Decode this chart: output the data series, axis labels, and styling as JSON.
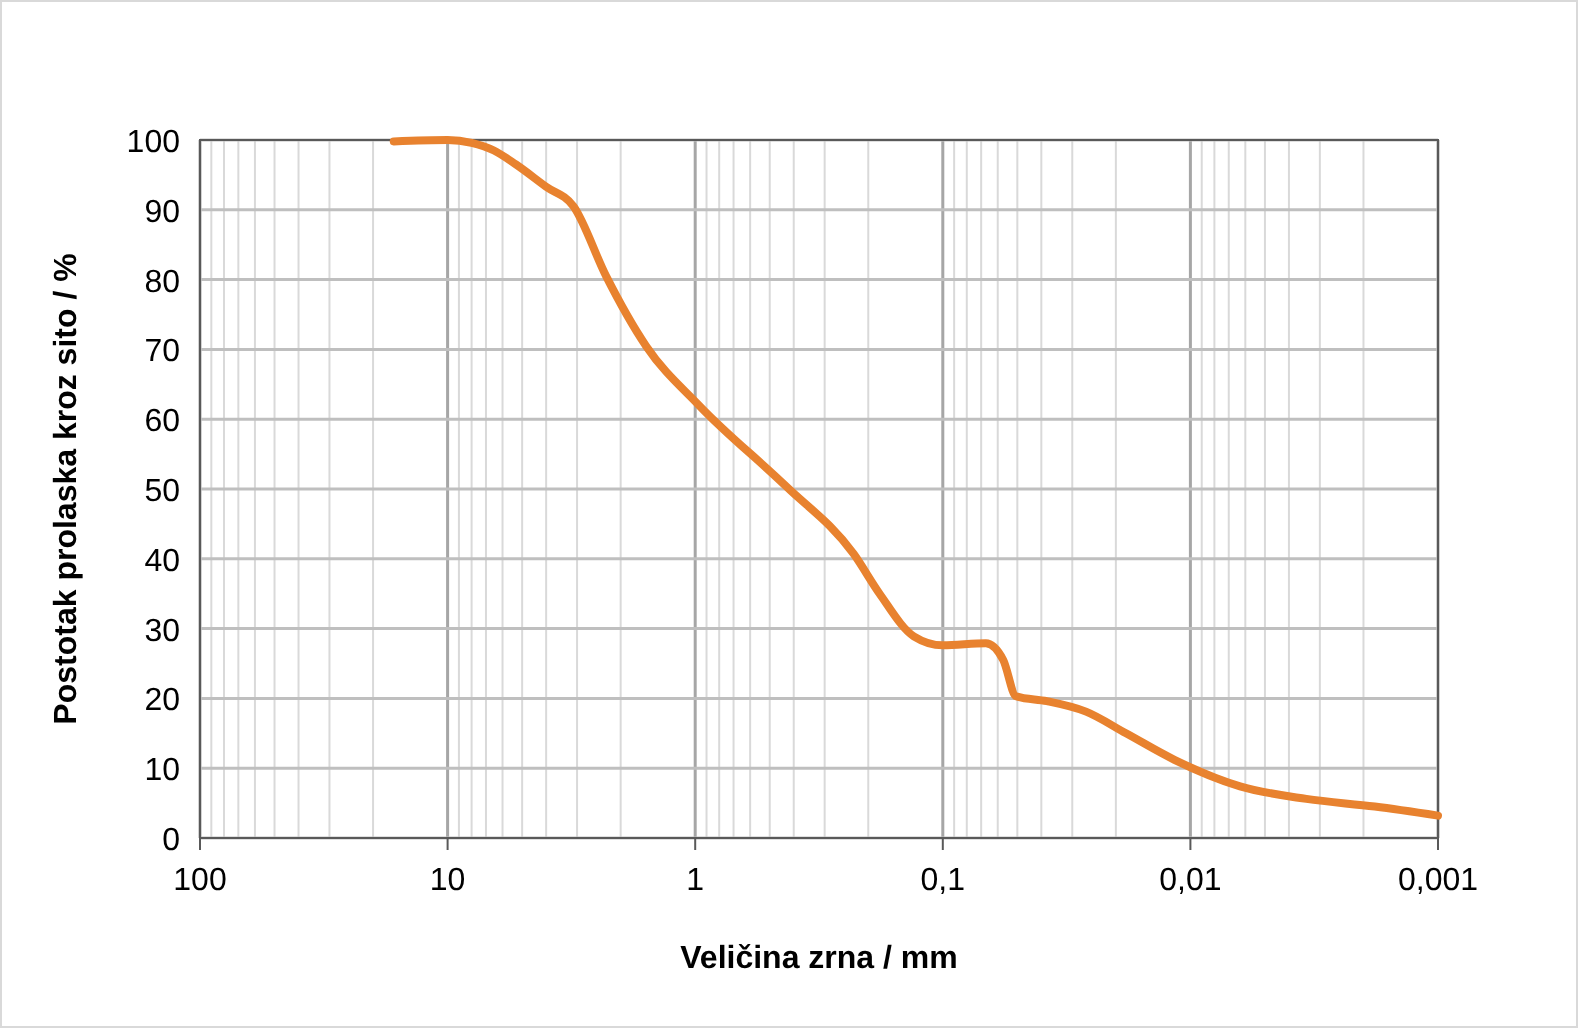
{
  "chart_data": {
    "type": "line",
    "xlabel": "Veličina zrna / mm",
    "ylabel": "Postotak prolaska kroz sito / %",
    "log": "x",
    "grid": true,
    "marker": "none",
    "line_style": "solid",
    "xlim": [
      100,
      0.001
    ],
    "xticks": [
      100,
      10,
      1,
      {
        "value": 0.1,
        "label": "0,1"
      },
      {
        "value": 0.01,
        "label": "0,01"
      },
      {
        "value": 0.001,
        "label": "0,001"
      }
    ],
    "ylim": [
      0,
      100
    ],
    "yticks": [
      0,
      10,
      20,
      30,
      40,
      50,
      60,
      70,
      80,
      90,
      100
    ],
    "series": [
      {
        "color": "#e8822f",
        "x": [
          16.5,
          10,
          8,
          6.5,
          5.3,
          4,
          3.1,
          2.29,
          1.58,
          0.96,
          0.43,
          0.229,
          0.18,
          0.131,
          0.1,
          0.067,
          0.057,
          0.0506,
          0.038,
          0.0264,
          0.0182,
          0.0116,
          0.0063,
          0.0034,
          0.0018,
          0.001
        ],
        "values": [
          99.8,
          100,
          99.6,
          98.5,
          96.5,
          93.3,
          90.5,
          80.5,
          70.5,
          61.9,
          50.4,
          40.7,
          35,
          28.9,
          27.6,
          27.9,
          25.5,
          20.3,
          19.6,
          18.1,
          15,
          11.2,
          7.4,
          5.6,
          4.5,
          3.2
        ]
      }
    ]
  }
}
